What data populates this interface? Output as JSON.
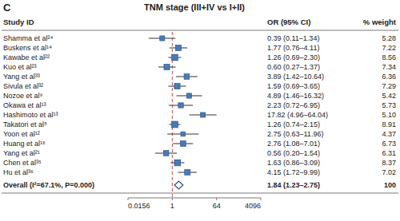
{
  "chart_data": {
    "type": "forest",
    "title": "TNM stage (III+IV vs I+II)",
    "panel_label": "C",
    "column_headers": [
      "Study ID",
      "OR (95% CI)",
      "% weight"
    ],
    "categories": [
      "Shamma et al²⁴",
      "Buskens et al¹⁴",
      "Kawabe et al²²",
      "Kuo et al²³",
      "Yang et al³³",
      "Sivula et al³²",
      "Nozoe et al⁹",
      "Okawa et al¹³",
      "Hashimoto et al¹³",
      "Takatori et al⁸",
      "Yoon et al¹²",
      "Huang et al¹⁶",
      "Yang et al²¹",
      "Chen et al³⁵",
      "Hu et al³⁶"
    ],
    "values": [
      0.39,
      1.77,
      1.26,
      0.6,
      3.89,
      1.59,
      4.89,
      2.23,
      17.82,
      1.26,
      2.75,
      2.76,
      0.56,
      1.63,
      4.15
    ],
    "ci_lo": [
      0.11,
      0.76,
      0.69,
      0.27,
      1.42,
      0.69,
      1.46,
      0.72,
      4.96,
      0.74,
      0.63,
      1.08,
      0.2,
      0.86,
      1.72
    ],
    "ci_hi": [
      1.34,
      4.11,
      2.3,
      1.37,
      10.64,
      3.65,
      16.32,
      6.95,
      64.04,
      2.15,
      11.96,
      7.01,
      1.54,
      3.09,
      9.99
    ],
    "value_labels": [
      "0.39 (0.11–1.34)",
      "1.77 (0.76–4.11)",
      "1.26 (0.69–2.30)",
      "0.60 (0.27–1.37)",
      "3.89 (1.42–10.64)",
      "1.59 (0.69–3.65)",
      "4.89 (1.46–16.32)",
      "2.23 (0.72–6.95)",
      "17.82 (4.96–64.04)",
      "1.26 (0.74–2.15)",
      "2.75 (0.63–11.96)",
      "2.76 (1.08–7.01)",
      "0.56 (0.20–1.54)",
      "1.63 (0.86–3.09)",
      "4.15 (1.72–9.99)"
    ],
    "weights": [
      5.28,
      7.22,
      8.56,
      7.34,
      6.36,
      7.29,
      5.42,
      5.73,
      5.1,
      8.91,
      4.37,
      6.73,
      6.31,
      8.37,
      7.02
    ],
    "weight_labels": [
      "5.28",
      "7.22",
      "8.56",
      "7.34",
      "6.36",
      "7.29",
      "5.42",
      "5.73",
      "5.10",
      "8.91",
      "4.37",
      "6.73",
      "6.31",
      "8.37",
      "7.02"
    ],
    "overall": {
      "label": "Overall (I²=67.1%, P=0.000)",
      "value": 1.84,
      "ci_lo": 1.23,
      "ci_hi": 2.75,
      "value_label": "1.84 (1.23–2.75)",
      "weight": 100
    },
    "reference": 1,
    "log": "x",
    "xlim": [
      0.0156,
      4096
    ],
    "xticks": [
      0.0156,
      1,
      64,
      4096
    ]
  }
}
